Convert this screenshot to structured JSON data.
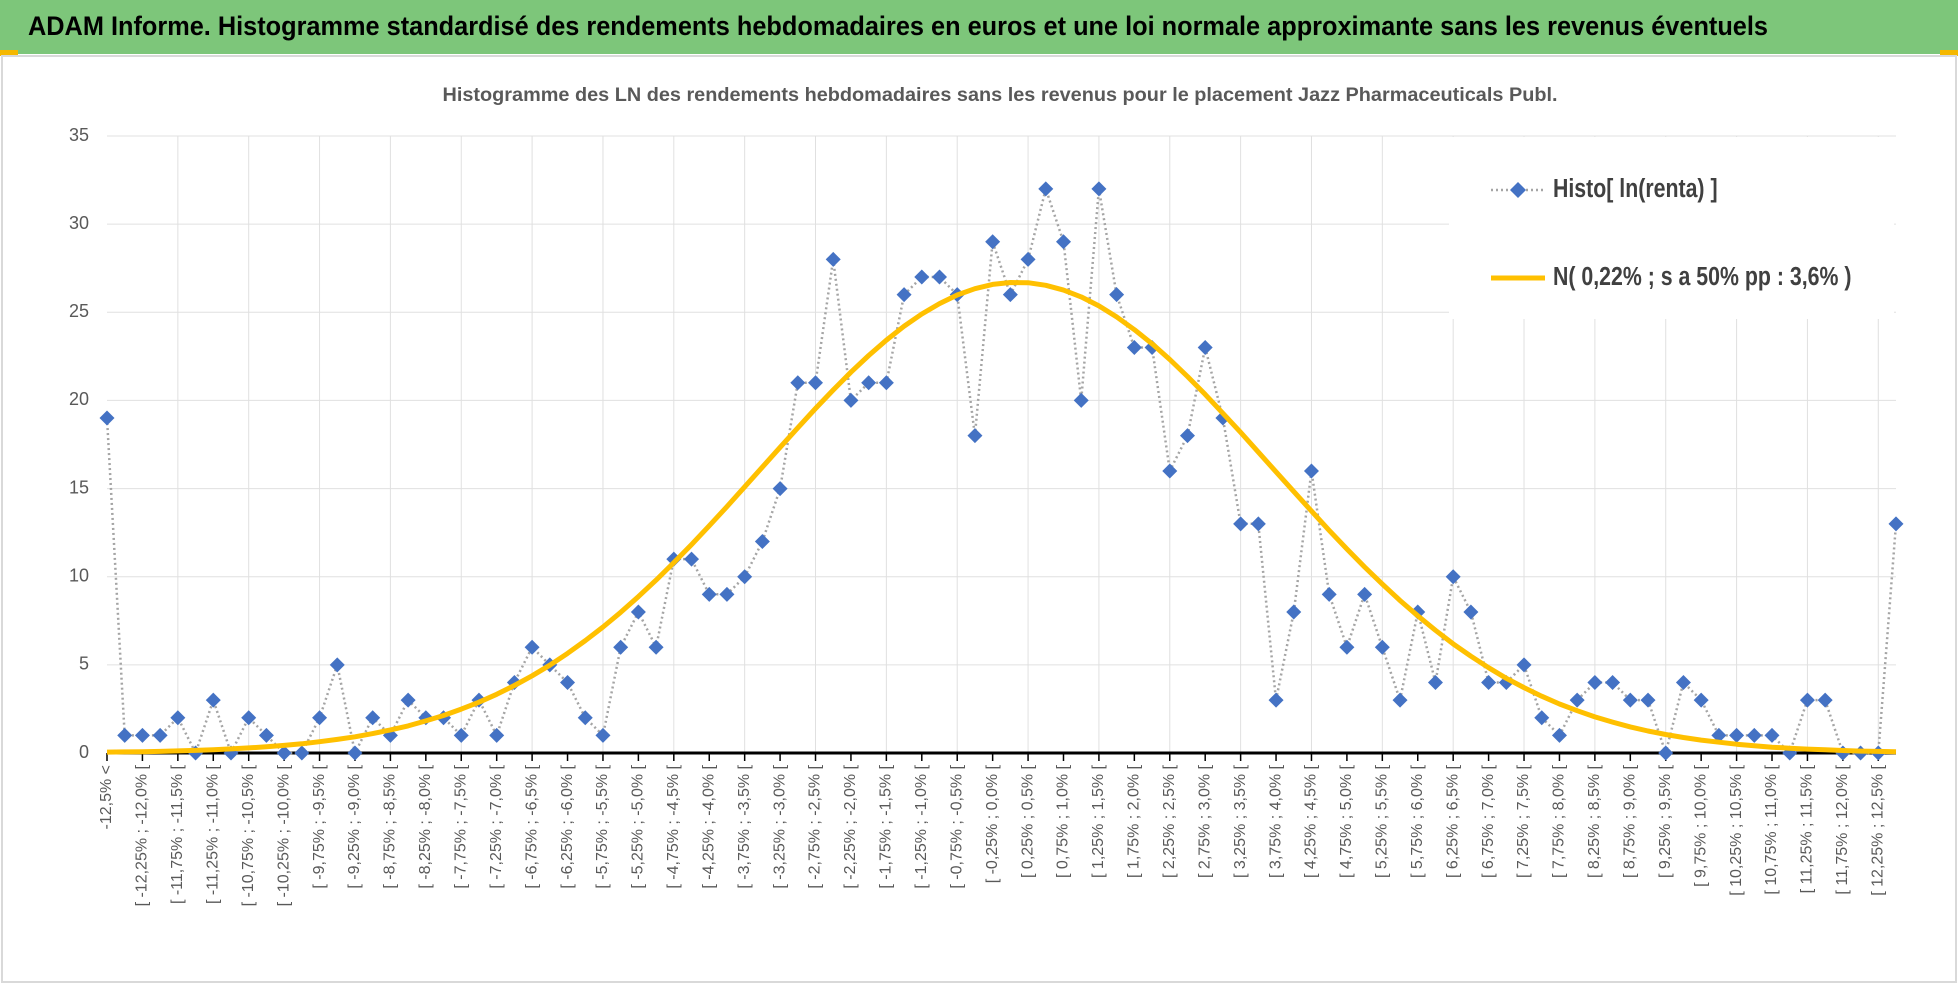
{
  "header": {
    "title": "ADAM Informe. Histogramme standardisé des rendements hebdomadaires en euros et une loi normale approximante sans les revenus éventuels"
  },
  "chart_data": {
    "type": "line",
    "title": "Histogramme  des LN des rendements  hebdomadaires sans les  revenus pour le placement Jazz Pharmaceuticals  Publ.",
    "categories": [
      "-12,5% <",
      null,
      "[ -12,25% ; -12,0% [",
      null,
      "[ -11,75% ; -11,5% [",
      null,
      "[ -11,25% ; -11,0% [",
      null,
      "[ -10,75% ; -10,5% [",
      null,
      "[ -10,25% ; -10,0% [",
      null,
      "[ -9,75% ; -9,5% [",
      null,
      "[ -9,25% ; -9,0% [",
      null,
      "[ -8,75% ; -8,5% [",
      null,
      "[ -8,25% ; -8,0% [",
      null,
      "[ -7,75% ; -7,5% [",
      null,
      "[ -7,25% ; -7,0% [",
      null,
      "[ -6,75% ; -6,5% [",
      null,
      "[ -6,25% ; -6,0% [",
      null,
      "[ -5,75% ; -5,5% [",
      null,
      "[ -5,25% ; -5,0% [",
      null,
      "[ -4,75% ; -4,5% [",
      null,
      "[ -4,25% ; -4,0% [",
      null,
      "[ -3,75% ; -3,5% [",
      null,
      "[ -3,25% ; -3,0% [",
      null,
      "[ -2,75% ; -2,5% [",
      null,
      "[ -2,25% ; -2,0% [",
      null,
      "[ -1,75% ; -1,5% [",
      null,
      "[ -1,25% ; -1,0% [",
      null,
      "[ -0,75% ; -0,5% [",
      null,
      "[ -0,25% ; 0,0% [",
      null,
      "[ 0,25% ; 0,5% [",
      null,
      "[ 0,75% ; 1,0% [",
      null,
      "[ 1,25% ; 1,5% [",
      null,
      "[ 1,75% ; 2,0% [",
      null,
      "[ 2,25% ; 2,5% [",
      null,
      "[ 2,75% ; 3,0% [",
      null,
      "[ 3,25% ; 3,5% [",
      null,
      "[ 3,75% ; 4,0% [",
      null,
      "[ 4,25% ; 4,5% [",
      null,
      "[ 4,75% ; 5,0% [",
      null,
      "[ 5,25% ; 5,5% [",
      null,
      "[ 5,75% ; 6,0% [",
      null,
      "[ 6,25% ; 6,5% [",
      null,
      "[ 6,75% ; 7,0% [",
      null,
      "[ 7,25% ; 7,5% [",
      null,
      "[ 7,75% ; 8,0% [",
      null,
      "[ 8,25% ; 8,5% [",
      null,
      "[ 8,75% ; 9,0% [",
      null,
      "[ 9,25% ; 9,5% [",
      null,
      "[ 9,75% ; 10,0% [",
      null,
      "[ 10,25% ; 10,5% [",
      null,
      "[ 10,75% ; 11,0% [",
      null,
      "[ 11,25% ; 11,5% [",
      null,
      "[ 11,75% ; 12,0% [",
      null,
      "[ 12,25% ; 12,5% [",
      null
    ],
    "series": [
      {
        "name": "Histo[ ln(renta) ]",
        "color": "#4472c4",
        "line_color": "#a5a5a5",
        "line_style": "dotted",
        "marker": "diamond",
        "values": [
          19,
          1,
          1,
          1,
          2,
          0,
          3,
          0,
          2,
          1,
          0,
          0,
          2,
          5,
          0,
          2,
          1,
          3,
          2,
          2,
          1,
          3,
          1,
          4,
          6,
          5,
          4,
          2,
          1,
          6,
          8,
          6,
          11,
          11,
          9,
          9,
          10,
          12,
          15,
          21,
          21,
          28,
          20,
          21,
          21,
          26,
          27,
          27,
          26,
          18,
          29,
          26,
          28,
          32,
          29,
          20,
          32,
          26,
          23,
          23,
          16,
          18,
          23,
          19,
          13,
          13,
          3,
          8,
          16,
          9,
          6,
          9,
          6,
          3,
          8,
          4,
          10,
          8,
          4,
          4,
          5,
          2,
          1,
          3,
          4,
          4,
          3,
          3,
          0,
          4,
          3,
          1,
          1,
          1,
          1,
          0,
          3,
          3,
          0,
          0,
          0,
          13
        ]
      },
      {
        "name": "N( 0,22% ; s a 50% pp : 3,6% )",
        "color": "#ffc000",
        "line_style": "solid",
        "marker": "none",
        "values": [
          0.05,
          0.06,
          0.07,
          0.09,
          0.12,
          0.15,
          0.19,
          0.23,
          0.29,
          0.35,
          0.43,
          0.52,
          0.64,
          0.77,
          0.92,
          1.1,
          1.31,
          1.54,
          1.82,
          2.13,
          2.49,
          2.88,
          3.33,
          3.83,
          4.38,
          4.98,
          5.65,
          6.37,
          7.15,
          7.98,
          8.87,
          9.81,
          10.8,
          11.82,
          12.89,
          13.98,
          15.1,
          16.22,
          17.34,
          18.45,
          19.54,
          20.59,
          21.6,
          22.55,
          23.42,
          24.21,
          24.9,
          25.49,
          25.98,
          26.34,
          26.58,
          26.69,
          26.68,
          26.53,
          26.26,
          25.87,
          25.36,
          24.74,
          24.02,
          23.21,
          22.32,
          21.36,
          20.34,
          19.27,
          18.19,
          17.07,
          15.95,
          14.83,
          13.72,
          12.63,
          11.57,
          10.55,
          9.58,
          8.65,
          7.78,
          6.96,
          6.19,
          5.49,
          4.84,
          4.24,
          3.71,
          3.22,
          2.78,
          2.4,
          2.05,
          1.75,
          1.48,
          1.25,
          1.05,
          0.88,
          0.73,
          0.61,
          0.5,
          0.41,
          0.33,
          0.27,
          0.22,
          0.18,
          0.14,
          0.11,
          0.09,
          0.07
        ]
      }
    ],
    "ylim": [
      0,
      35
    ],
    "yticks": [
      0,
      5,
      10,
      15,
      20,
      25,
      30,
      35
    ],
    "grid": true,
    "legend": "upper right"
  }
}
